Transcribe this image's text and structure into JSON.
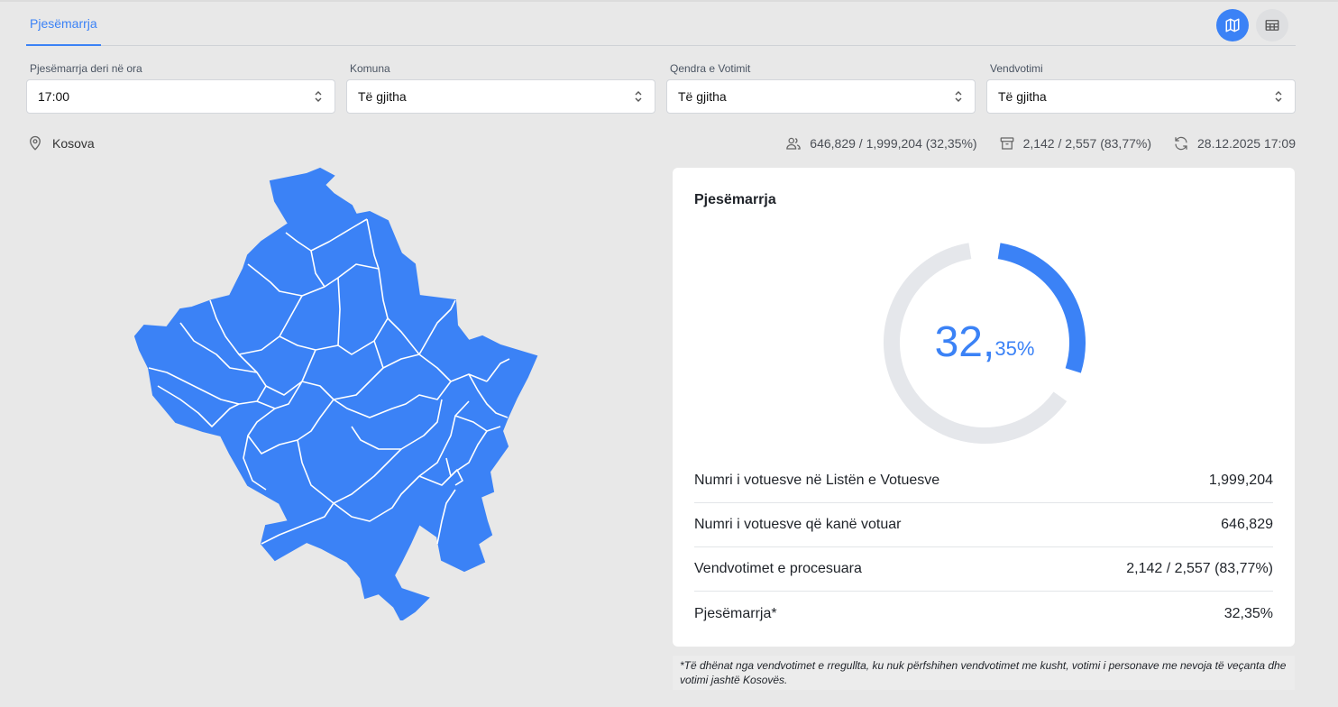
{
  "tabs": [
    {
      "label": "Pjesëmarrja"
    }
  ],
  "view_toggle": {
    "map_icon": "map-icon",
    "table_icon": "table-icon"
  },
  "filters": [
    {
      "label": "Pjesëmarrja deri në ora",
      "value": "17:00"
    },
    {
      "label": "Komuna",
      "value": "Të gjitha"
    },
    {
      "label": "Qendra e Votimit",
      "value": "Të gjitha"
    },
    {
      "label": "Vendvotimi",
      "value": "Të gjitha"
    }
  ],
  "location": {
    "icon": "location-pin-icon",
    "label": "Kosova"
  },
  "summary": {
    "voters": "646,829 / 1,999,204 (32,35%)",
    "stations": "2,142 / 2,557 (83,77%)",
    "updated": "28.12.2025 17:09"
  },
  "card": {
    "title": "Pjesëmarrja",
    "percent_int": "32,",
    "percent_dec": "35%",
    "turnout_fraction": 0.3235,
    "rows": [
      {
        "label": "Numri i votuesve në Listën e Votuesve",
        "value": "1,999,204"
      },
      {
        "label": "Numri i votuesve që kanë votuar",
        "value": "646,829"
      },
      {
        "label": "Vendvotimet e procesuara",
        "value": "2,142 / 2,557 (83,77%)"
      },
      {
        "label": "Pjesëmarrja*",
        "value": "32,35%"
      }
    ]
  },
  "footnote": "*Të dhënat nga vendvotimet e rregullta, ku nuk përfshihen vendvotimet me kusht, votimi i personave me nevoja të veçanta dhe votimi jashtë Kosovës.",
  "colors": {
    "accent": "#3b82f6",
    "track": "#e5e7eb",
    "background": "#e8e8e8"
  }
}
